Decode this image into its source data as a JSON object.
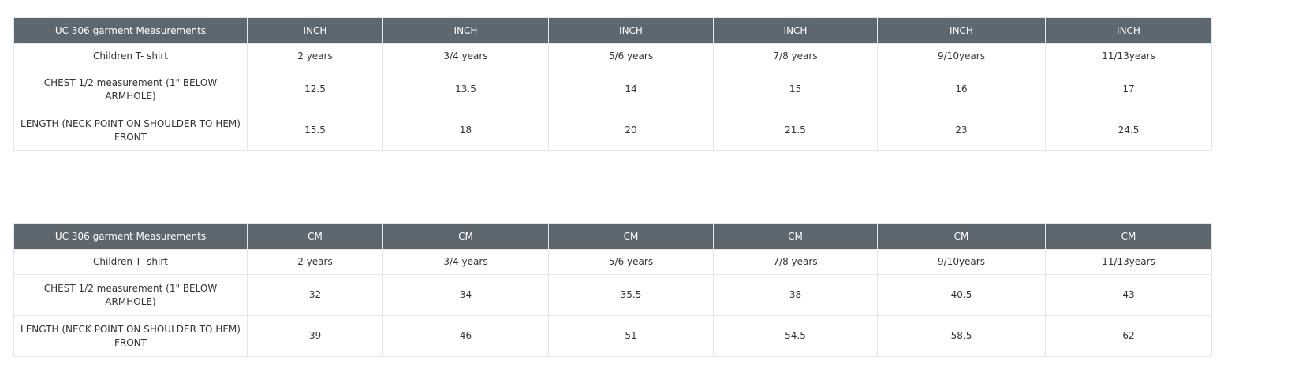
{
  "tables": [
    {
      "headers": [
        "UC 306 garment Measurements",
        "INCH",
        "INCH",
        "INCH",
        "INCH",
        "INCH",
        "INCH"
      ],
      "rows": [
        [
          "Children T- shirt",
          "2 years",
          "3/4 years",
          "5/6 years",
          "7/8 years",
          "9/10years",
          "11/13years"
        ],
        [
          "CHEST 1/2 measurement (1\" BELOW ARMHOLE)",
          "12.5",
          "13.5",
          "14",
          "15",
          "16",
          "17"
        ],
        [
          "LENGTH (NECK POINT ON SHOULDER TO HEM) FRONT",
          "15.5",
          "18",
          "20",
          "21.5",
          "23",
          "24.5"
        ]
      ]
    },
    {
      "headers": [
        "UC 306 garment Measurements",
        "CM",
        "CM",
        "CM",
        "CM",
        "CM",
        "CM"
      ],
      "rows": [
        [
          "Children T- shirt",
          "2 years",
          "3/4 years",
          "5/6 years",
          "7/8 years",
          "9/10years",
          "11/13years"
        ],
        [
          "CHEST 1/2 measurement (1\" BELOW ARMHOLE)",
          "32",
          "34",
          "35.5",
          "38",
          "40.5",
          "43"
        ],
        [
          "LENGTH (NECK POINT ON SHOULDER TO HEM) FRONT",
          "39",
          "46",
          "51",
          "54.5",
          "58.5",
          "62"
        ]
      ]
    }
  ],
  "colors": {
    "header_bg": "#5d6770",
    "border": "#e2e4ee"
  }
}
